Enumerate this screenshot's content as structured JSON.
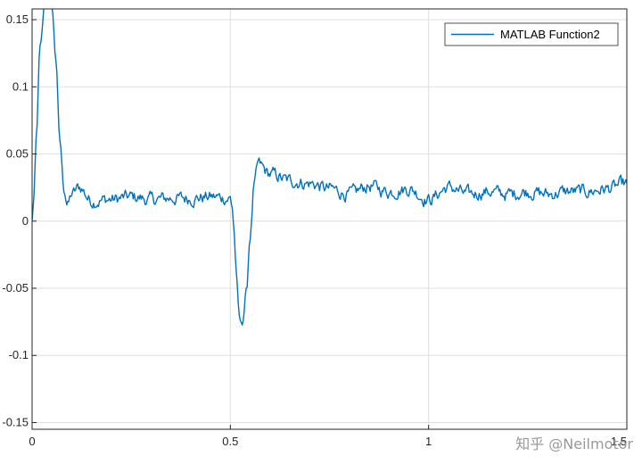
{
  "chart_data": {
    "type": "line",
    "title": "",
    "xlabel": "",
    "ylabel": "",
    "xlim": [
      0,
      1.5
    ],
    "ylim": [
      -0.155,
      0.158
    ],
    "grid": true,
    "legend_position": "top-right",
    "x_ticks": [
      0,
      0.5,
      1,
      1.5
    ],
    "x_tick_labels": [
      "0",
      "0.5",
      "1",
      "1.5"
    ],
    "y_ticks": [
      0.15,
      0.1,
      0.05,
      0,
      -0.05,
      -0.1,
      -0.15
    ],
    "y_tick_labels": [
      "0.15",
      "0.1",
      "0.05",
      "0",
      "-0.05",
      "-0.1",
      "-0.15"
    ],
    "series": [
      {
        "name": "MATLAB Function2",
        "color": "#0072BD",
        "x": [
          0,
          0.005,
          0.01,
          0.02,
          0.035,
          0.05,
          0.06,
          0.07,
          0.08,
          0.09,
          0.1,
          0.12,
          0.15,
          0.2,
          0.25,
          0.3,
          0.35,
          0.4,
          0.45,
          0.5,
          0.505,
          0.51,
          0.515,
          0.52,
          0.525,
          0.53,
          0.54,
          0.55,
          0.56,
          0.57,
          0.6,
          0.65,
          0.7,
          0.75,
          0.8,
          0.85,
          0.9,
          0.95,
          1.0,
          1.05,
          1.1,
          1.15,
          1.2,
          1.25,
          1.3,
          1.35,
          1.4,
          1.45,
          1.5
        ],
        "y": [
          0,
          0.02,
          0.06,
          0.13,
          0.17,
          0.16,
          0.12,
          0.06,
          0.025,
          0.012,
          0.02,
          0.025,
          0.015,
          0.016,
          0.018,
          0.016,
          0.017,
          0.017,
          0.018,
          0.017,
          0.01,
          -0.01,
          -0.04,
          -0.065,
          -0.078,
          -0.074,
          -0.055,
          -0.01,
          0.025,
          0.042,
          0.035,
          0.03,
          0.028,
          0.024,
          0.02,
          0.026,
          0.022,
          0.024,
          0.016,
          0.025,
          0.02,
          0.022,
          0.02,
          0.022,
          0.02,
          0.022,
          0.022,
          0.024,
          0.028
        ]
      }
    ]
  },
  "watermark": "知乎 @Neilmotor"
}
